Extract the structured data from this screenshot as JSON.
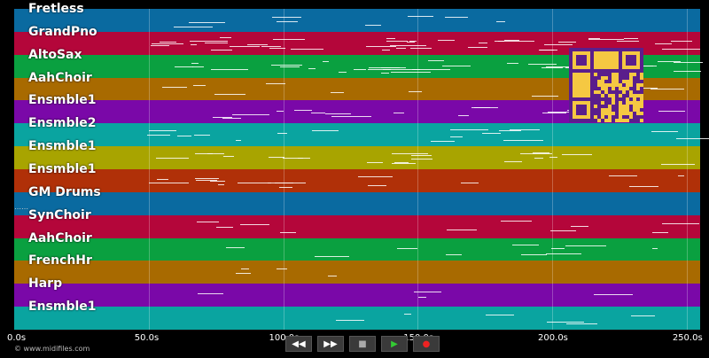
{
  "tracks": [
    {
      "name": "Fretless",
      "color": "#0a6aa0"
    },
    {
      "name": "GrandPno",
      "color": "#b4063a"
    },
    {
      "name": "AltoSax",
      "color": "#0aa040"
    },
    {
      "name": "AahChoir",
      "color": "#a86a00"
    },
    {
      "name": "Ensmble1",
      "color": "#7a08a8"
    },
    {
      "name": "Ensmble2",
      "color": "#0aa4a0"
    },
    {
      "name": "Ensmble1",
      "color": "#a8a400"
    },
    {
      "name": "Ensmble1",
      "color": "#b03008"
    },
    {
      "name": "GM Drums",
      "color": "#0a6aa0"
    },
    {
      "name": "SynChoir",
      "color": "#b4063a"
    },
    {
      "name": "AahChoir",
      "color": "#0aa040"
    },
    {
      "name": "FrenchHr",
      "color": "#a86a00"
    },
    {
      "name": "Harp",
      "color": "#7a08a8"
    },
    {
      "name": "Ensmble1",
      "color": "#0aa4a0"
    }
  ],
  "time_axis": {
    "ticks": [
      "0.0s",
      "50.0s",
      "100.0s",
      "150.0s",
      "200.0s",
      "250.0s"
    ],
    "max_seconds": 255
  },
  "transport": {
    "rewind": "◀◀",
    "fast_forward": "▶▶",
    "stop": "■",
    "play": "▶",
    "record": "●"
  },
  "credit": "© www.midifiles.com"
}
